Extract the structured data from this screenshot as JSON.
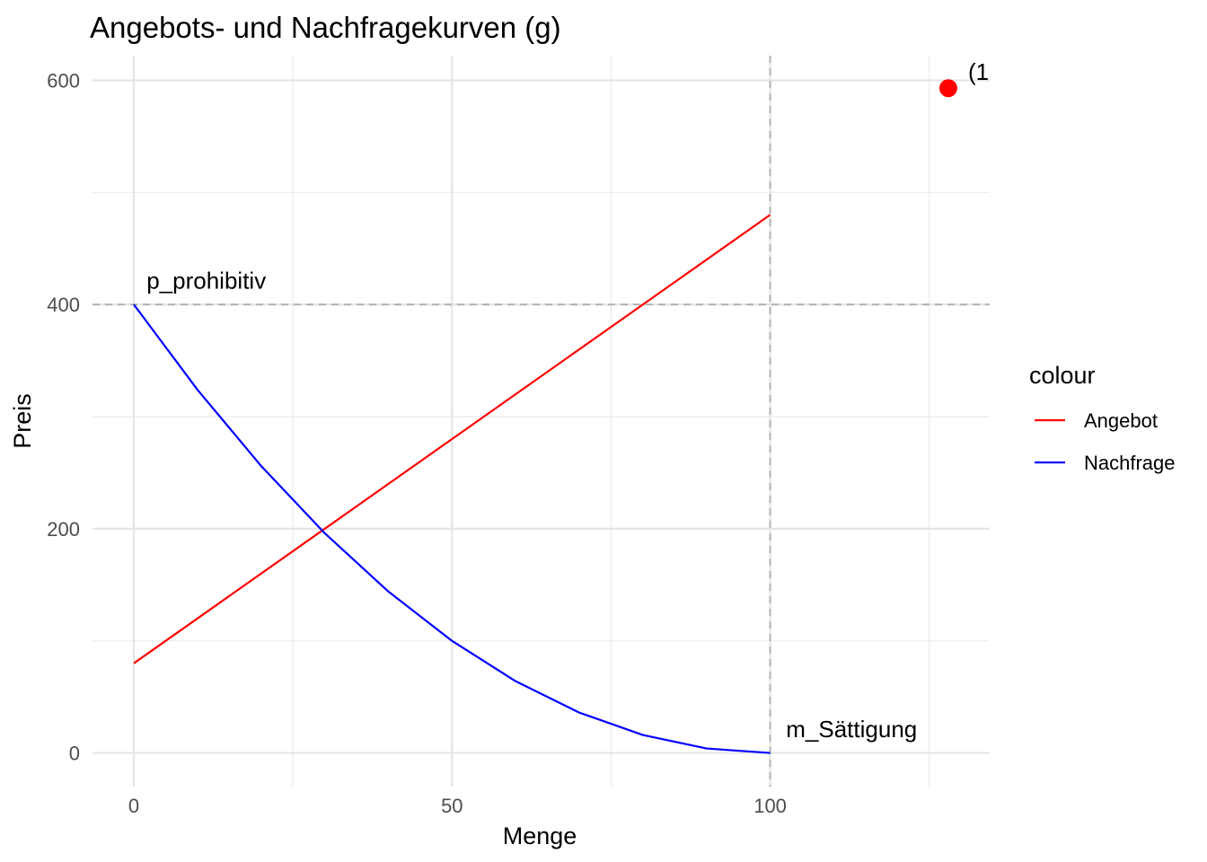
{
  "chart_data": {
    "type": "line",
    "title": "Angebots- und Nachfragekurven (g)",
    "xlabel": "Menge",
    "ylabel": "Preis",
    "xlim": [
      -6.5,
      134.5
    ],
    "ylim": [
      -30,
      622
    ],
    "x_ticks": [
      0,
      50,
      100
    ],
    "x_minor_ticks": [
      25,
      75,
      125
    ],
    "y_ticks": [
      0,
      200,
      400,
      600
    ],
    "y_minor_ticks": [
      100,
      300,
      500
    ],
    "grid": true,
    "legend": {
      "title": "colour",
      "placement": "right",
      "entries": [
        "Angebot",
        "Nachfrage"
      ]
    },
    "series": [
      {
        "name": "Angebot",
        "color": "#ff0000",
        "x": [
          0,
          100
        ],
        "y": [
          80,
          480
        ]
      },
      {
        "name": "Nachfrage",
        "color": "#0000ff",
        "x": [
          0,
          10,
          20,
          30,
          40,
          50,
          60,
          70,
          80,
          90,
          100
        ],
        "y": [
          400,
          324,
          256,
          196,
          144,
          100,
          64,
          36,
          16,
          4,
          0
        ]
      }
    ],
    "reference_lines": [
      {
        "orientation": "horizontal",
        "value": 400,
        "style": "dashed",
        "color": "#b3b3b3"
      },
      {
        "orientation": "vertical",
        "value": 100,
        "style": "dashed",
        "color": "#b3b3b3"
      }
    ],
    "points": [
      {
        "x": 128,
        "y": 593,
        "color": "#ff0000",
        "label": "(1"
      }
    ],
    "annotations": [
      {
        "text": "p_prohibitiv",
        "x": 2,
        "y": 414
      },
      {
        "text": "m_Sättigung",
        "x": 102.5,
        "y": 14
      }
    ]
  }
}
